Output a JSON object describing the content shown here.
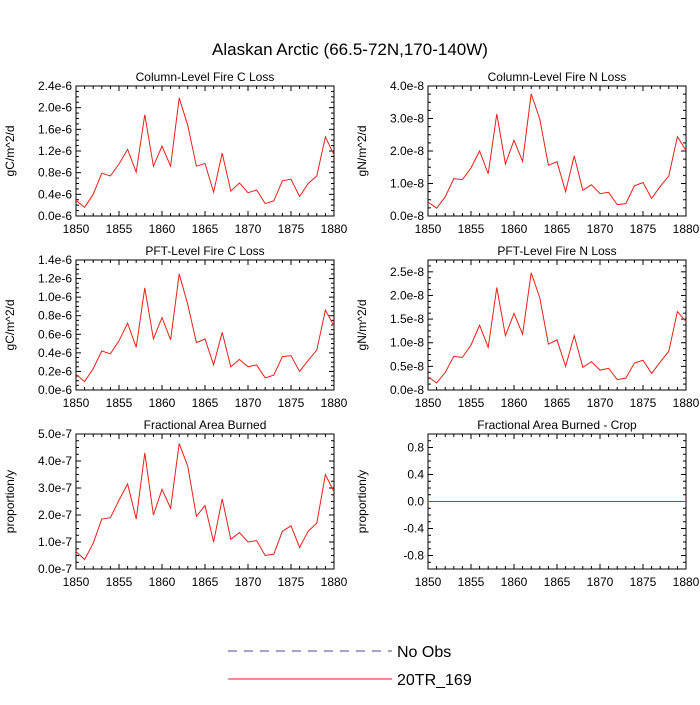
{
  "title": "Alaskan Arctic (66.5-72N,170-140W)",
  "legend": {
    "items": [
      {
        "label": "No Obs",
        "color": "#4a4a9c",
        "dash": true
      },
      {
        "label": "20TR_169",
        "color": "#e8201a",
        "dash": false
      }
    ]
  },
  "chart_data": [
    {
      "type": "line",
      "title": "Column-Level Fire C Loss",
      "ylabel": "gC/m^2/d",
      "xlim": [
        1850,
        1880
      ],
      "ylim": [
        0,
        2.4e-06
      ],
      "xticks": [
        1850,
        1855,
        1860,
        1865,
        1870,
        1875,
        1880
      ],
      "yticks": [
        0,
        4e-07,
        8e-07,
        1.2e-06,
        1.6e-06,
        2e-06,
        2.4e-06
      ],
      "ytick_labels": [
        "0.0e-6",
        "0.4e-6",
        "0.8e-6",
        "1.2e-6",
        "1.6e-6",
        "2.0e-6",
        "2.4e-6"
      ],
      "series": [
        {
          "color": "#e8201a",
          "x": [
            1850,
            1851,
            1852,
            1853,
            1854,
            1855,
            1856,
            1857,
            1858,
            1859,
            1860,
            1861,
            1862,
            1863,
            1864,
            1865,
            1866,
            1867,
            1868,
            1869,
            1870,
            1871,
            1872,
            1873,
            1874,
            1875,
            1876,
            1877,
            1878,
            1879,
            1880
          ],
          "y": [
            2.9e-07,
            1.6e-07,
            4e-07,
            7.9e-07,
            7.4e-07,
            9.6e-07,
            1.23e-06,
            8.1e-07,
            1.87e-06,
            9.2e-07,
            1.29e-06,
            9.2e-07,
            2.18e-06,
            1.67e-06,
            9.2e-07,
            9.7e-07,
            4.4e-07,
            1.16e-06,
            4.6e-07,
            6.1e-07,
            4.3e-07,
            4.8e-07,
            2.3e-07,
            2.8e-07,
            6.5e-07,
            6.8e-07,
            3.6e-07,
            6e-07,
            7.4e-07,
            1.46e-06,
            1.13e-06
          ]
        }
      ]
    },
    {
      "type": "line",
      "title": "Column-Level Fire N Loss",
      "ylabel": "gN/m^2/d",
      "xlim": [
        1850,
        1880
      ],
      "ylim": [
        0,
        4e-08
      ],
      "xticks": [
        1850,
        1855,
        1860,
        1865,
        1870,
        1875,
        1880
      ],
      "yticks": [
        0,
        1e-08,
        2e-08,
        3e-08,
        4e-08
      ],
      "ytick_labels": [
        "0.0e-8",
        "1.0e-8",
        "2.0e-8",
        "3.0e-8",
        "4.0e-8"
      ],
      "series": [
        {
          "color": "#e8201a",
          "x": [
            1850,
            1851,
            1852,
            1853,
            1854,
            1855,
            1856,
            1857,
            1858,
            1859,
            1860,
            1861,
            1862,
            1863,
            1864,
            1865,
            1866,
            1867,
            1868,
            1869,
            1870,
            1871,
            1872,
            1873,
            1874,
            1875,
            1876,
            1877,
            1878,
            1879,
            1880
          ],
          "y": [
            4.3e-09,
            2.4e-09,
            5.9e-09,
            1.15e-08,
            1.12e-08,
            1.48e-08,
            2e-08,
            1.3e-08,
            3.14e-08,
            1.6e-08,
            2.33e-08,
            1.68e-08,
            3.76e-08,
            2.98e-08,
            1.56e-08,
            1.67e-08,
            7.5e-09,
            1.85e-08,
            7.9e-09,
            9.6e-09,
            6.9e-09,
            7.3e-09,
            3.5e-09,
            3.8e-09,
            9.3e-09,
            1.03e-08,
            5.4e-09,
            9.1e-09,
            1.23e-08,
            2.44e-08,
            2.02e-08
          ]
        }
      ]
    },
    {
      "type": "line",
      "title": "PFT-Level Fire C Loss",
      "ylabel": "gC/m^2/d",
      "xlim": [
        1850,
        1880
      ],
      "ylim": [
        0,
        1.4e-06
      ],
      "xticks": [
        1850,
        1855,
        1860,
        1865,
        1870,
        1875,
        1880
      ],
      "yticks": [
        0,
        2e-07,
        4e-07,
        6e-07,
        8e-07,
        1e-06,
        1.2e-06,
        1.4e-06
      ],
      "ytick_labels": [
        "0.0e-6",
        "0.2e-6",
        "0.4e-6",
        "0.6e-6",
        "0.8e-6",
        "1.0e-6",
        "1.2e-6",
        "1.4e-6"
      ],
      "series": [
        {
          "color": "#e8201a",
          "x": [
            1850,
            1851,
            1852,
            1853,
            1854,
            1855,
            1856,
            1857,
            1858,
            1859,
            1860,
            1861,
            1862,
            1863,
            1864,
            1865,
            1866,
            1867,
            1868,
            1869,
            1870,
            1871,
            1872,
            1873,
            1874,
            1875,
            1876,
            1877,
            1878,
            1879,
            1880
          ],
          "y": [
            1.7e-07,
            9e-08,
            2.3e-07,
            4.2e-07,
            3.9e-07,
            5.3e-07,
            7.2e-07,
            4.6e-07,
            1.1e-06,
            5.5e-07,
            7.8e-07,
            5.4e-07,
            1.25e-06,
            9.2e-07,
            5.1e-07,
            5.5e-07,
            2.7e-07,
            6.2e-07,
            2.5e-07,
            3.3e-07,
            2.5e-07,
            2.7e-07,
            1.3e-07,
            1.6e-07,
            3.6e-07,
            3.7e-07,
            2e-07,
            3.2e-07,
            4.3e-07,
            8.6e-07,
            6.9e-07
          ]
        }
      ]
    },
    {
      "type": "line",
      "title": "PFT-Level Fire N Loss",
      "ylabel": "gN/m^2/d",
      "xlim": [
        1850,
        1880
      ],
      "ylim": [
        0,
        2.75e-08
      ],
      "xticks": [
        1850,
        1855,
        1860,
        1865,
        1870,
        1875,
        1880
      ],
      "yticks": [
        0,
        5e-09,
        1e-08,
        1.5e-08,
        2e-08,
        2.5e-08
      ],
      "ytick_labels": [
        "0.0e-8",
        "0.5e-8",
        "1.0e-8",
        "1.5e-8",
        "2.0e-8",
        "2.5e-8"
      ],
      "series": [
        {
          "color": "#e8201a",
          "x": [
            1850,
            1851,
            1852,
            1853,
            1854,
            1855,
            1856,
            1857,
            1858,
            1859,
            1860,
            1861,
            1862,
            1863,
            1864,
            1865,
            1866,
            1867,
            1868,
            1869,
            1870,
            1871,
            1872,
            1873,
            1874,
            1875,
            1876,
            1877,
            1878,
            1879,
            1880
          ],
          "y": [
            2.8e-09,
            1.5e-09,
            3.7e-09,
            7.1e-09,
            6.9e-09,
            9.5e-09,
            1.37e-08,
            9e-09,
            2.17e-08,
            1.15e-08,
            1.62e-08,
            1.18e-08,
            2.48e-08,
            1.95e-08,
            9.7e-09,
            1.06e-08,
            5e-09,
            1.15e-08,
            4.8e-09,
            6e-09,
            4.2e-09,
            4.6e-09,
            2.2e-09,
            2.5e-09,
            5.7e-09,
            6.3e-09,
            3.5e-09,
            5.9e-09,
            8.2e-09,
            1.66e-08,
            1.45e-08
          ]
        }
      ]
    },
    {
      "type": "line",
      "title": "Fractional Area Burned",
      "ylabel": "proportion/y",
      "xlim": [
        1850,
        1880
      ],
      "ylim": [
        0,
        5e-07
      ],
      "xticks": [
        1850,
        1855,
        1860,
        1865,
        1870,
        1875,
        1880
      ],
      "yticks": [
        0,
        1e-07,
        2e-07,
        3e-07,
        4e-07,
        5e-07
      ],
      "ytick_labels": [
        "0.0e-7",
        "1.0e-7",
        "2.0e-7",
        "3.0e-7",
        "4.0e-7",
        "5.0e-7"
      ],
      "series": [
        {
          "color": "#e8201a",
          "x": [
            1850,
            1851,
            1852,
            1853,
            1854,
            1855,
            1856,
            1857,
            1858,
            1859,
            1860,
            1861,
            1862,
            1863,
            1864,
            1865,
            1866,
            1867,
            1868,
            1869,
            1870,
            1871,
            1872,
            1873,
            1874,
            1875,
            1876,
            1877,
            1878,
            1879,
            1880
          ],
          "y": [
            6.5e-08,
            3.5e-08,
            9.5e-08,
            1.85e-07,
            1.9e-07,
            2.55e-07,
            3.15e-07,
            1.85e-07,
            4.3e-07,
            2e-07,
            2.95e-07,
            2.25e-07,
            4.65e-07,
            3.8e-07,
            1.95e-07,
            2.35e-07,
            1e-07,
            2.6e-07,
            1.1e-07,
            1.35e-07,
            1e-07,
            1.05e-07,
            5e-08,
            5.5e-08,
            1.4e-07,
            1.6e-07,
            8e-08,
            1.4e-07,
            1.7e-07,
            3.5e-07,
            2.85e-07
          ]
        }
      ]
    },
    {
      "type": "line",
      "title": "Fractional Area Burned - Crop",
      "ylabel": "proportion/y",
      "xlim": [
        1850,
        1880
      ],
      "ylim": [
        -1,
        1
      ],
      "xticks": [
        1850,
        1855,
        1860,
        1865,
        1870,
        1875,
        1880
      ],
      "yticks": [
        -0.8,
        -0.4,
        0,
        0.4,
        0.8
      ],
      "ytick_labels": [
        "-0.8",
        "-0.4",
        "0.0",
        "0.4",
        "0.8"
      ],
      "series": [
        {
          "color": "#e8201a",
          "x": [
            1850,
            1880
          ],
          "y": [
            0,
            0
          ]
        }
      ]
    }
  ]
}
